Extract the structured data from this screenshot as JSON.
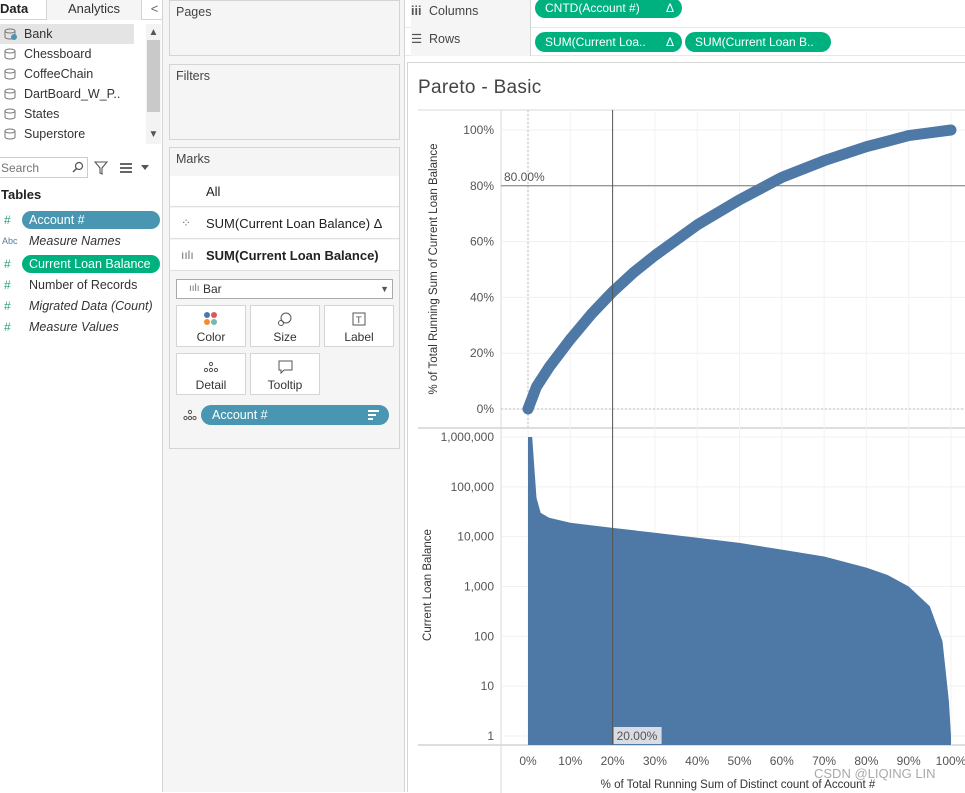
{
  "pane_tabs": {
    "data": "Data",
    "analytics": "Analytics",
    "collapse": "<"
  },
  "data_sources": [
    "Bank",
    "Chessboard",
    "CoffeeChain",
    "DartBoard_W_P..",
    "States",
    "Superstore"
  ],
  "search": {
    "placeholder": "Search"
  },
  "tables": {
    "header": "Tables",
    "fields": [
      {
        "type": "#",
        "name": "Account #",
        "style": "pill-blue"
      },
      {
        "type": "Abc",
        "name": "Measure Names",
        "style": "italic"
      },
      {
        "type": "#",
        "name": "Current Loan Balance",
        "style": "pill-green"
      },
      {
        "type": "#",
        "name": "Number of Records",
        "style": "plain"
      },
      {
        "type": "#",
        "name": "Migrated Data (Count)",
        "style": "italic"
      },
      {
        "type": "#",
        "name": "Measure Values",
        "style": "italic"
      }
    ]
  },
  "cards": {
    "pages": "Pages",
    "filters": "Filters",
    "marks": "Marks"
  },
  "marks": {
    "all": "All",
    "measure1": "SUM(Current Loan Balance) Δ",
    "measure2": "SUM(Current Loan Balance)",
    "mark_type": "Bar",
    "buttons": {
      "color": "Color",
      "size": "Size",
      "label": "Label",
      "detail": "Detail",
      "tooltip": "Tooltip"
    },
    "detail_pill": "Account #"
  },
  "shelves": {
    "columns_label": "Columns",
    "rows_label": "Rows",
    "columns_pill": "CNTD(Account #)",
    "rows_pill_1": "SUM(Current Loa..",
    "rows_pill_2": "SUM(Current Loan B..",
    "delta": "Δ"
  },
  "view": {
    "title": "Pareto - Basic",
    "top_ylabel": "% of Total Running Sum of Current Loan Balance",
    "bottom_ylabel": "Current Loan Balance",
    "xlabel": "% of Total Running Sum of Distinct count of Account #",
    "ref_y_label": "80.00%",
    "ref_x_label": "20.00%",
    "watermark": "CSDN @LIQING LIN"
  },
  "colors": {
    "mark": "#4e79a7",
    "pill_blue": "#4996b2",
    "pill_green": "#00b180"
  },
  "chart_data": [
    {
      "type": "line",
      "ylabel": "% of Total Running Sum of Current Loan Balance",
      "ylim": [
        0,
        100
      ],
      "y_ticks": [
        "0%",
        "20%",
        "40%",
        "60%",
        "80%",
        "100%"
      ],
      "x": [
        0,
        2,
        5,
        10,
        15,
        20,
        25,
        30,
        40,
        50,
        60,
        70,
        80,
        90,
        100
      ],
      "y": [
        0,
        8,
        15,
        25,
        34,
        42,
        49,
        55,
        66,
        75,
        83,
        89,
        94,
        98,
        100
      ],
      "reference_line_y": 80
    },
    {
      "type": "area",
      "ylabel": "Current Loan Balance",
      "scale": "log",
      "y_ticks": [
        "1",
        "10",
        "100",
        "1,000",
        "10,000",
        "100,000",
        "1,000,000"
      ],
      "x": [
        0,
        1,
        2,
        3,
        5,
        10,
        20,
        30,
        40,
        50,
        60,
        70,
        80,
        85,
        90,
        95,
        98,
        99.5,
        100
      ],
      "y": [
        1000000,
        1000000,
        60000,
        30000,
        24000,
        19000,
        15000,
        12000,
        9500,
        7500,
        5500,
        4000,
        2400,
        1700,
        1000,
        400,
        80,
        5,
        1
      ],
      "reference_line_x": 20
    }
  ],
  "x_ticks": [
    "0%",
    "10%",
    "20%",
    "30%",
    "40%",
    "50%",
    "60%",
    "70%",
    "80%",
    "90%",
    "100%"
  ]
}
